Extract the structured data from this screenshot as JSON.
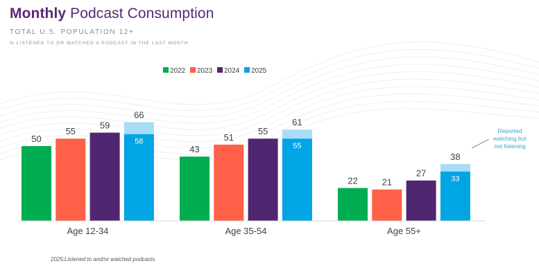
{
  "header": {
    "title_bold": "Monthly",
    "title_rest": "Podcast Consumption",
    "subtitle": "TOTAL U.S. POPULATION 12+",
    "subsubtitle": "% LISTENED TO OR WATCHED A PODCAST IN THE LAST MONTH"
  },
  "colors": {
    "title": "#5a2878",
    "s2022": "#00ad50",
    "s2023": "#ff6047",
    "s2024": "#512671",
    "s2025": "#00a5e3",
    "watching": "#a8dcf7"
  },
  "chart_data": {
    "type": "bar",
    "categories": [
      "Age 12-34",
      "Age 35-54",
      "Age 55+"
    ],
    "series": [
      {
        "name": "2022",
        "values": [
          50,
          43,
          22
        ]
      },
      {
        "name": "2023",
        "values": [
          55,
          51,
          21
        ]
      },
      {
        "name": "2024",
        "values": [
          59,
          55,
          27
        ]
      },
      {
        "name": "2025",
        "values": [
          66,
          61,
          38
        ],
        "listened_values": [
          58,
          55,
          33
        ]
      }
    ],
    "legend_position": "top",
    "grid": false,
    "ylim": [
      0,
      80
    ],
    "annotation": "Reported watching but not listening"
  },
  "footnote": "2025:Listened to and/or watched podcasts"
}
